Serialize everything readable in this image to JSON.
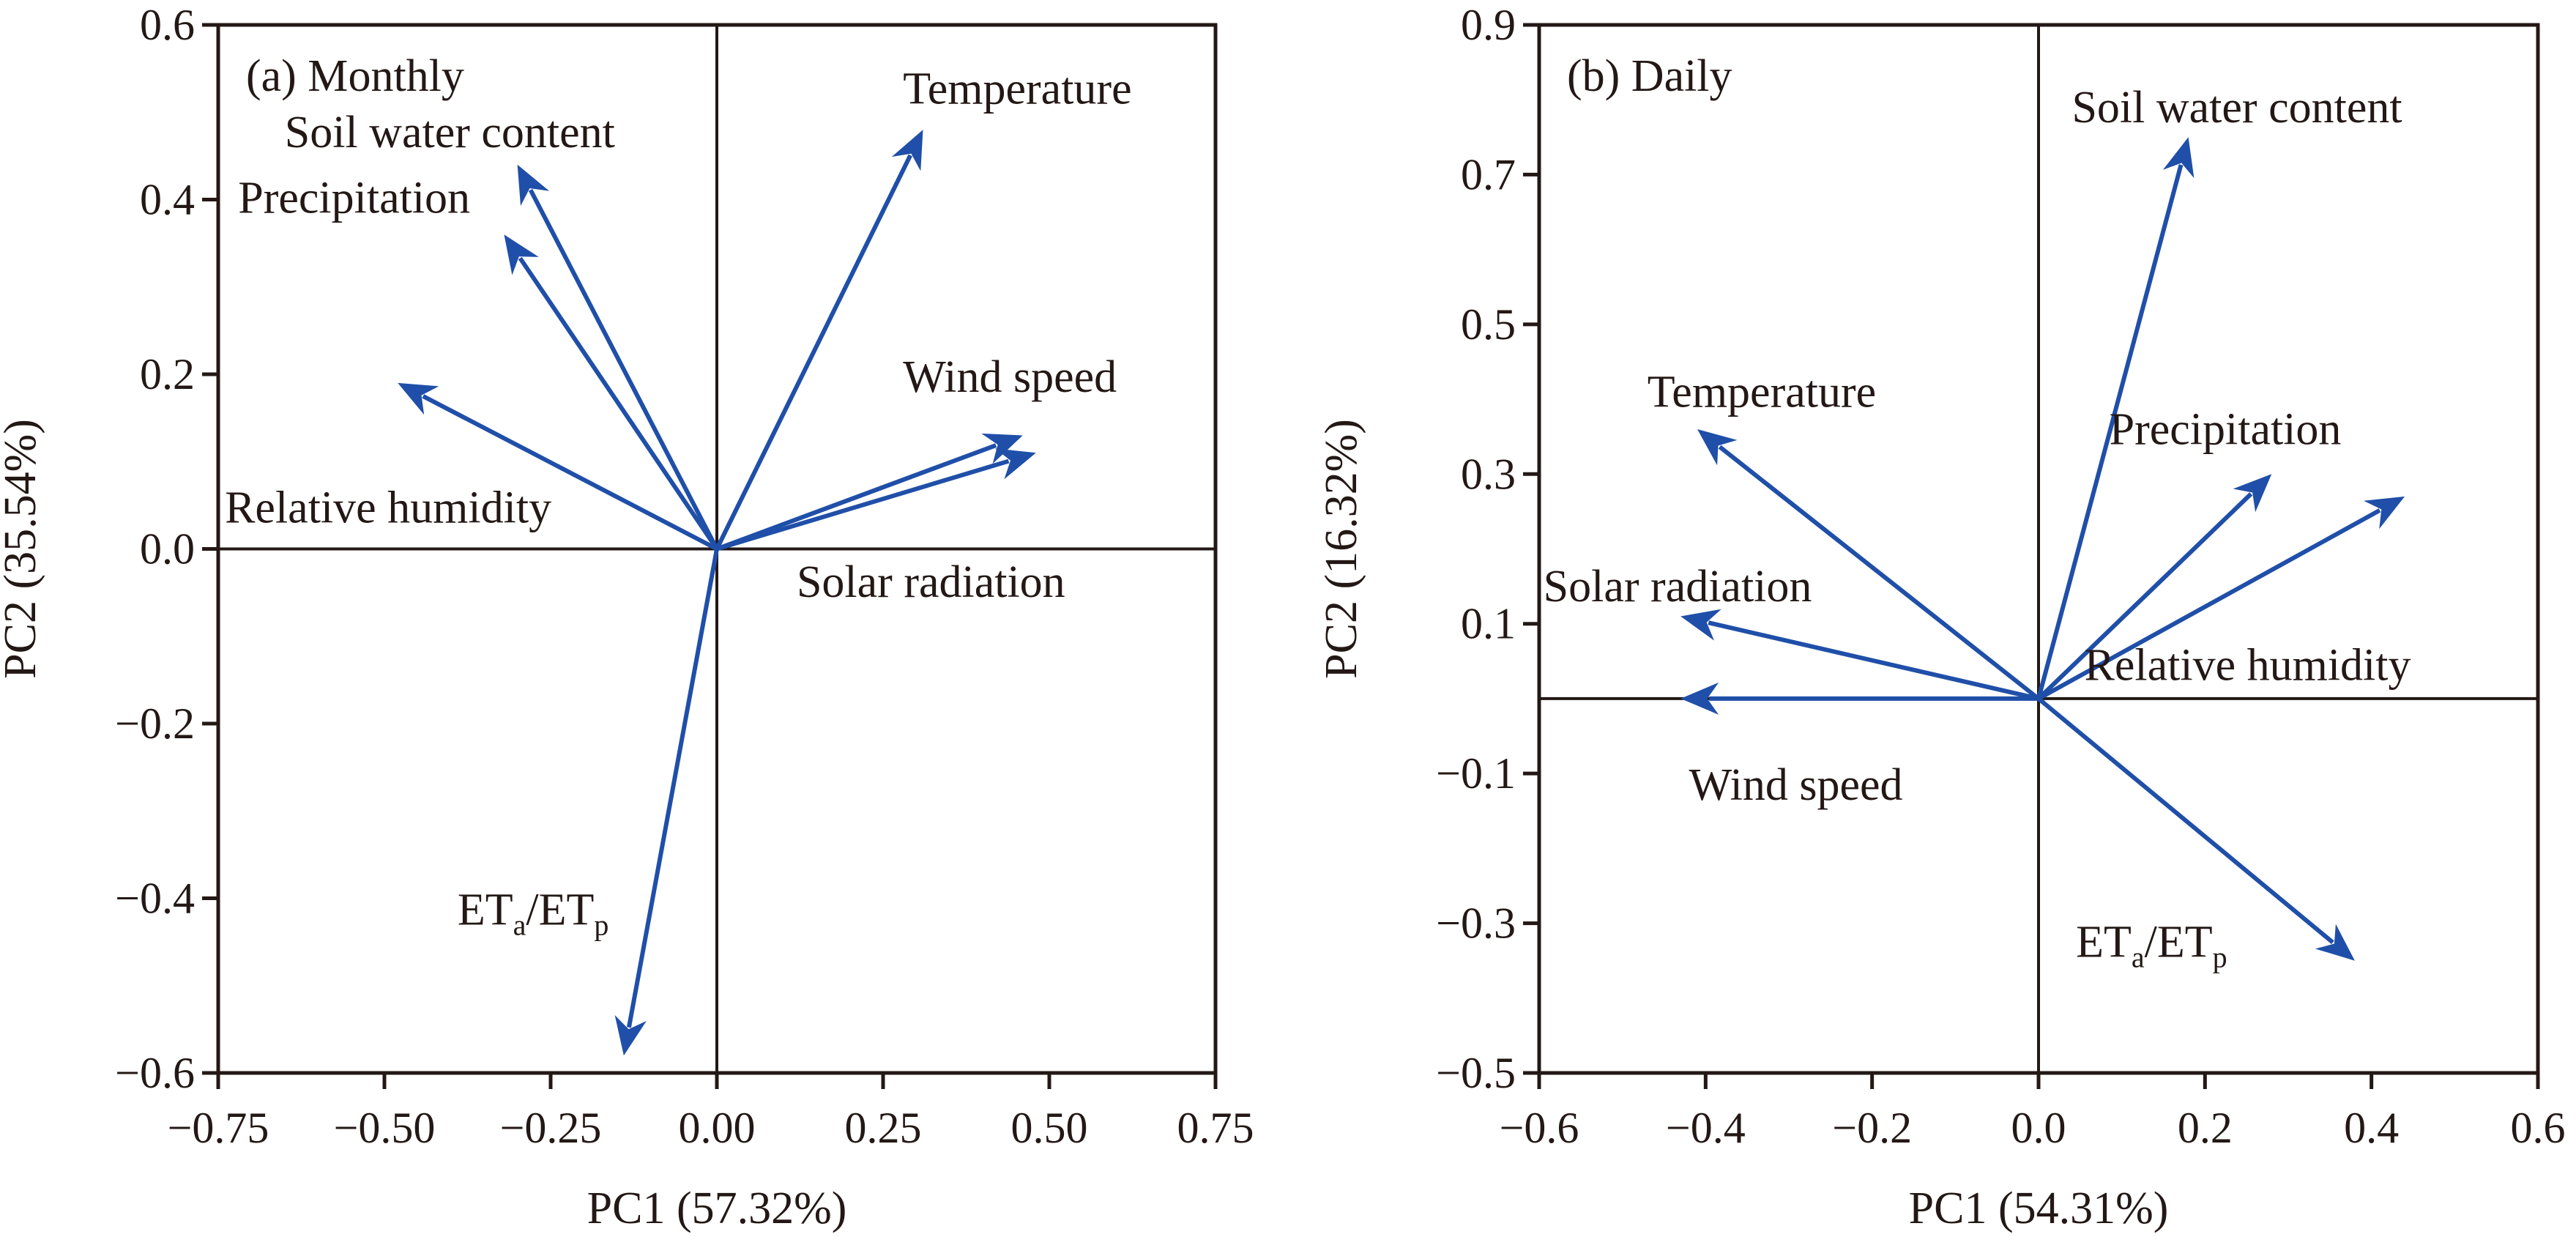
{
  "chart_data": [
    {
      "type": "biplot",
      "title": "(a) Monthly",
      "xlabel": "PC1 (57.32%)",
      "ylabel": "PC2 (35.54%)",
      "xlim": [
        -0.75,
        0.75
      ],
      "ylim": [
        -0.6,
        0.6
      ],
      "xticks": [
        -0.75,
        -0.5,
        -0.25,
        0.0,
        0.25,
        0.5,
        0.75
      ],
      "xtick_labels": [
        "−0.75",
        "−0.50",
        "−0.25",
        "0.00",
        "0.25",
        "0.50",
        "0.75"
      ],
      "yticks": [
        0.6,
        0.4,
        0.2,
        0.0,
        -0.2,
        -0.4,
        -0.6
      ],
      "ytick_labels": [
        "0.6",
        "0.4",
        "0.2",
        "0.0",
        "−0.2",
        "−0.4",
        "−0.6"
      ],
      "arrow_color": "#1f4fa8",
      "vectors": [
        {
          "name": "Temperature",
          "x": 0.31,
          "y": 0.48
        },
        {
          "name": "Soil water content",
          "x": -0.3,
          "y": 0.44
        },
        {
          "name": "Precipitation",
          "x": -0.32,
          "y": 0.36
        },
        {
          "name": "Relative humidity",
          "x": -0.48,
          "y": 0.19
        },
        {
          "name": "Wind speed",
          "x": 0.46,
          "y": 0.13
        },
        {
          "name": "Solar radiation",
          "x": 0.48,
          "y": 0.11
        },
        {
          "name": "ETa/ETp",
          "x": -0.14,
          "y": -0.58
        }
      ],
      "labels": [
        {
          "text": "Temperature",
          "ax": 0.28,
          "ay": 0.51
        },
        {
          "text": "Soil water content",
          "ax": -0.65,
          "ay": 0.46
        },
        {
          "text": "Precipitation",
          "ax": -0.72,
          "ay": 0.385
        },
        {
          "text": "Relative humidity",
          "ax": -0.74,
          "ay": 0.03
        },
        {
          "text": "Wind speed",
          "ax": 0.28,
          "ay": 0.18
        },
        {
          "text": "Solar radiation",
          "ax": 0.12,
          "ay": -0.055
        },
        {
          "text": "ETa/ETp",
          "ax": -0.39,
          "ay": -0.43,
          "sub_a": "a",
          "sub_p": "p"
        }
      ]
    },
    {
      "type": "biplot",
      "title": "(b) Daily",
      "xlabel": "PC1 (54.31%)",
      "ylabel": "PC2 (16.32%)",
      "xlim": [
        -0.6,
        0.6
      ],
      "ylim": [
        -0.5,
        0.9
      ],
      "xticks": [
        -0.6,
        -0.4,
        -0.2,
        0.0,
        0.2,
        0.4,
        0.6
      ],
      "xtick_labels": [
        "−0.6",
        "−0.4",
        "−0.2",
        "0.0",
        "0.2",
        "0.4",
        "0.6"
      ],
      "yticks": [
        0.9,
        0.7,
        0.5,
        0.3,
        0.1,
        -0.1,
        -0.3,
        -0.5
      ],
      "ytick_labels": [
        "0.9",
        "0.7",
        "0.5",
        "0.3",
        "0.1",
        "−0.1",
        "−0.3",
        "−0.5"
      ],
      "arrow_color": "#1f4fa8",
      "vectors": [
        {
          "name": "Soil water content",
          "x": 0.18,
          "y": 0.75
        },
        {
          "name": "Temperature",
          "x": -0.41,
          "y": 0.36
        },
        {
          "name": "Precipitation",
          "x": 0.28,
          "y": 0.3
        },
        {
          "name": "Relative humidity",
          "x": 0.44,
          "y": 0.27
        },
        {
          "name": "Solar radiation",
          "x": -0.43,
          "y": 0.11
        },
        {
          "name": "Wind speed",
          "x": -0.43,
          "y": 0.0
        },
        {
          "name": "ETa/ETp",
          "x": 0.38,
          "y": -0.35
        }
      ],
      "labels": [
        {
          "text": "Soil water content",
          "ax": 0.04,
          "ay": 0.77
        },
        {
          "text": "Temperature",
          "ax": -0.47,
          "ay": 0.39
        },
        {
          "text": "Precipitation",
          "ax": 0.085,
          "ay": 0.34
        },
        {
          "text": "Relative humidity",
          "ax": 0.055,
          "ay": 0.025
        },
        {
          "text": "Solar radiation",
          "ax": -0.595,
          "ay": 0.13
        },
        {
          "text": "Wind speed",
          "ax": -0.42,
          "ay": -0.135
        },
        {
          "text": "ETa/ETp",
          "ax": 0.045,
          "ay": -0.345,
          "sub_a": "a",
          "sub_p": "p"
        }
      ]
    }
  ]
}
